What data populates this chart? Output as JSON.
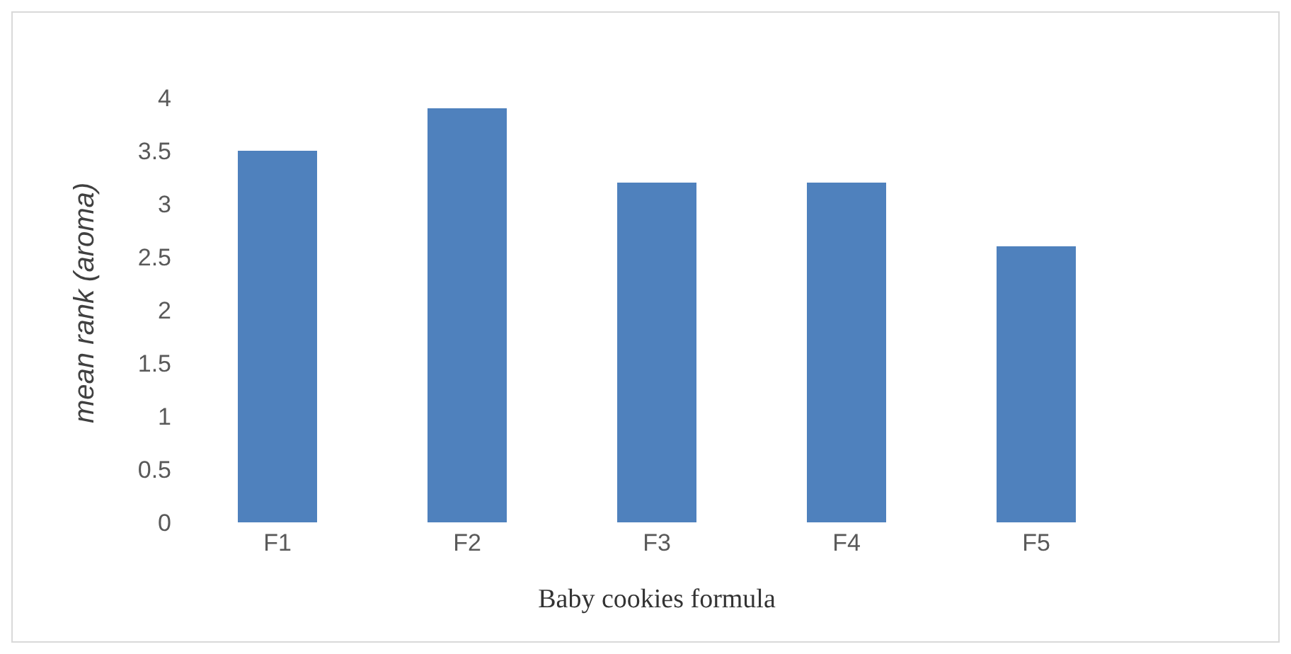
{
  "chart_data": {
    "type": "bar",
    "xlabel": "Baby cookies formula",
    "ylabel": "mean rank (aroma)",
    "categories": [
      "F1",
      "F2",
      "F3",
      "F4",
      "F5"
    ],
    "values": [
      3.5,
      3.9,
      3.2,
      3.2,
      2.6
    ],
    "color": "#4f81bd",
    "ylim": [
      0,
      4
    ],
    "yticks": [
      0,
      0.5,
      1,
      1.5,
      2,
      2.5,
      3,
      3.5,
      4
    ],
    "grid": false
  }
}
